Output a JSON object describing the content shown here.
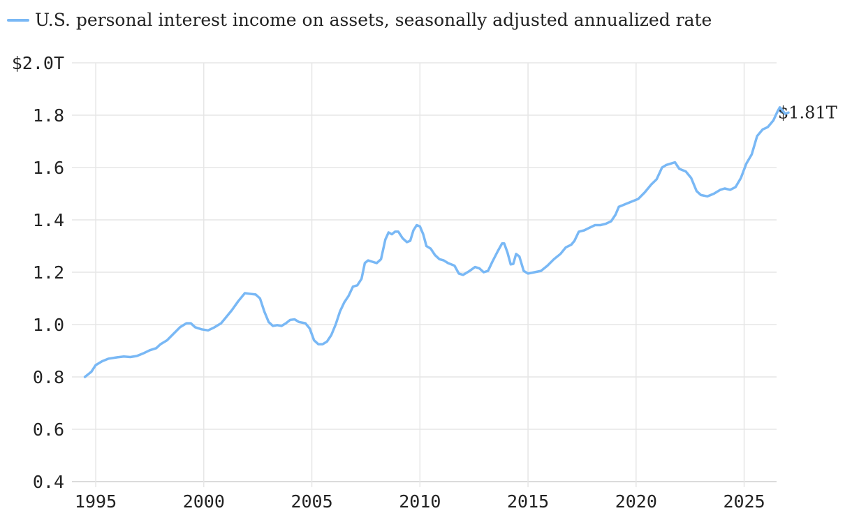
{
  "chart_data": {
    "type": "line",
    "title": "",
    "xlabel": "",
    "ylabel": "",
    "legend": {
      "placement": "top-left"
    },
    "grid": true,
    "series": [
      {
        "name": "U.S. personal interest income on assets, seasonally adjusted annualized rate",
        "color": "#79b8f5",
        "end_label": "$1.81T",
        "points": [
          [
            1994.5,
            0.8
          ],
          [
            1994.8,
            0.82
          ],
          [
            1995.0,
            0.845
          ],
          [
            1995.3,
            0.86
          ],
          [
            1995.6,
            0.87
          ],
          [
            1996.0,
            0.875
          ],
          [
            1996.3,
            0.878
          ],
          [
            1996.6,
            0.876
          ],
          [
            1996.9,
            0.88
          ],
          [
            1997.2,
            0.89
          ],
          [
            1997.5,
            0.902
          ],
          [
            1997.8,
            0.91
          ],
          [
            1998.0,
            0.925
          ],
          [
            1998.3,
            0.94
          ],
          [
            1998.6,
            0.965
          ],
          [
            1998.9,
            0.99
          ],
          [
            1999.2,
            1.005
          ],
          [
            1999.4,
            1.005
          ],
          [
            1999.6,
            0.99
          ],
          [
            1999.9,
            0.982
          ],
          [
            2000.2,
            0.978
          ],
          [
            2000.5,
            0.99
          ],
          [
            2000.8,
            1.005
          ],
          [
            2001.0,
            1.025
          ],
          [
            2001.3,
            1.055
          ],
          [
            2001.6,
            1.09
          ],
          [
            2001.9,
            1.12
          ],
          [
            2002.1,
            1.118
          ],
          [
            2002.4,
            1.115
          ],
          [
            2002.6,
            1.1
          ],
          [
            2002.8,
            1.05
          ],
          [
            2003.0,
            1.01
          ],
          [
            2003.2,
            0.995
          ],
          [
            2003.4,
            0.998
          ],
          [
            2003.6,
            0.995
          ],
          [
            2003.8,
            1.005
          ],
          [
            2004.0,
            1.018
          ],
          [
            2004.2,
            1.02
          ],
          [
            2004.4,
            1.01
          ],
          [
            2004.7,
            1.005
          ],
          [
            2004.9,
            0.985
          ],
          [
            2005.1,
            0.94
          ],
          [
            2005.3,
            0.925
          ],
          [
            2005.5,
            0.925
          ],
          [
            2005.7,
            0.935
          ],
          [
            2005.9,
            0.96
          ],
          [
            2006.1,
            1.0
          ],
          [
            2006.3,
            1.05
          ],
          [
            2006.5,
            1.085
          ],
          [
            2006.7,
            1.11
          ],
          [
            2006.9,
            1.145
          ],
          [
            2007.1,
            1.15
          ],
          [
            2007.3,
            1.175
          ],
          [
            2007.45,
            1.235
          ],
          [
            2007.6,
            1.245
          ],
          [
            2007.8,
            1.24
          ],
          [
            2008.0,
            1.235
          ],
          [
            2008.2,
            1.25
          ],
          [
            2008.4,
            1.325
          ],
          [
            2008.55,
            1.352
          ],
          [
            2008.7,
            1.345
          ],
          [
            2008.85,
            1.355
          ],
          [
            2009.0,
            1.355
          ],
          [
            2009.2,
            1.33
          ],
          [
            2009.4,
            1.315
          ],
          [
            2009.55,
            1.32
          ],
          [
            2009.7,
            1.36
          ],
          [
            2009.85,
            1.38
          ],
          [
            2010.0,
            1.375
          ],
          [
            2010.15,
            1.345
          ],
          [
            2010.3,
            1.3
          ],
          [
            2010.5,
            1.29
          ],
          [
            2010.7,
            1.265
          ],
          [
            2010.9,
            1.25
          ],
          [
            2011.1,
            1.245
          ],
          [
            2011.3,
            1.235
          ],
          [
            2011.6,
            1.225
          ],
          [
            2011.8,
            1.195
          ],
          [
            2012.0,
            1.19
          ],
          [
            2012.3,
            1.205
          ],
          [
            2012.55,
            1.22
          ],
          [
            2012.75,
            1.215
          ],
          [
            2012.95,
            1.2
          ],
          [
            2013.15,
            1.205
          ],
          [
            2013.35,
            1.24
          ],
          [
            2013.6,
            1.28
          ],
          [
            2013.8,
            1.31
          ],
          [
            2013.9,
            1.31
          ],
          [
            2014.05,
            1.275
          ],
          [
            2014.2,
            1.23
          ],
          [
            2014.32,
            1.232
          ],
          [
            2014.45,
            1.27
          ],
          [
            2014.6,
            1.26
          ],
          [
            2014.8,
            1.205
          ],
          [
            2015.0,
            1.195
          ],
          [
            2015.3,
            1.2
          ],
          [
            2015.6,
            1.205
          ],
          [
            2015.9,
            1.225
          ],
          [
            2016.2,
            1.25
          ],
          [
            2016.5,
            1.27
          ],
          [
            2016.75,
            1.295
          ],
          [
            2017.0,
            1.305
          ],
          [
            2017.15,
            1.32
          ],
          [
            2017.35,
            1.355
          ],
          [
            2017.6,
            1.36
          ],
          [
            2017.85,
            1.37
          ],
          [
            2018.1,
            1.38
          ],
          [
            2018.35,
            1.38
          ],
          [
            2018.6,
            1.385
          ],
          [
            2018.85,
            1.395
          ],
          [
            2019.05,
            1.42
          ],
          [
            2019.2,
            1.45
          ],
          [
            2019.5,
            1.46
          ],
          [
            2019.8,
            1.47
          ],
          [
            2020.1,
            1.48
          ],
          [
            2020.4,
            1.505
          ],
          [
            2020.7,
            1.535
          ],
          [
            2020.95,
            1.555
          ],
          [
            2021.2,
            1.6
          ],
          [
            2021.4,
            1.61
          ],
          [
            2021.6,
            1.615
          ],
          [
            2021.8,
            1.62
          ],
          [
            2022.0,
            1.595
          ],
          [
            2022.3,
            1.585
          ],
          [
            2022.55,
            1.56
          ],
          [
            2022.8,
            1.51
          ],
          [
            2023.0,
            1.495
          ],
          [
            2023.3,
            1.49
          ],
          [
            2023.6,
            1.5
          ],
          [
            2023.9,
            1.515
          ],
          [
            2024.1,
            1.52
          ],
          [
            2024.35,
            1.515
          ],
          [
            2024.6,
            1.525
          ],
          [
            2024.85,
            1.56
          ],
          [
            2025.1,
            1.615
          ],
          [
            2025.35,
            1.65
          ],
          [
            2025.6,
            1.72
          ],
          [
            2025.85,
            1.745
          ],
          [
            2026.1,
            1.755
          ],
          [
            2026.35,
            1.78
          ],
          [
            2026.55,
            1.815
          ],
          [
            2026.65,
            1.83
          ],
          [
            2026.8,
            1.815
          ],
          [
            2026.9,
            1.805
          ],
          [
            2027.05,
            1.81
          ]
        ]
      }
    ],
    "end_marker": {
      "x": 2027.05,
      "y": 1.81
    },
    "x_axis": {
      "range": [
        1993.9,
        2026.5
      ],
      "ticks": [
        {
          "value": 1995,
          "label": "1995"
        },
        {
          "value": 2000,
          "label": "2000"
        },
        {
          "value": 2005,
          "label": "2005"
        },
        {
          "value": 2010,
          "label": "2010"
        },
        {
          "value": 2015,
          "label": "2015"
        },
        {
          "value": 2020,
          "label": "2020"
        },
        {
          "value": 2025,
          "label": "2025"
        }
      ]
    },
    "y_axis": {
      "range": [
        0.4,
        2.0
      ],
      "ticks": [
        {
          "value": 2.0,
          "label": "$2.0T"
        },
        {
          "value": 1.8,
          "label": "1.8"
        },
        {
          "value": 1.6,
          "label": "1.6"
        },
        {
          "value": 1.4,
          "label": "1.4"
        },
        {
          "value": 1.2,
          "label": "1.2"
        },
        {
          "value": 1.0,
          "label": "1.0"
        },
        {
          "value": 0.8,
          "label": "0.8"
        },
        {
          "value": 0.6,
          "label": "0.6"
        },
        {
          "value": 0.4,
          "label": "0.4"
        }
      ]
    }
  }
}
